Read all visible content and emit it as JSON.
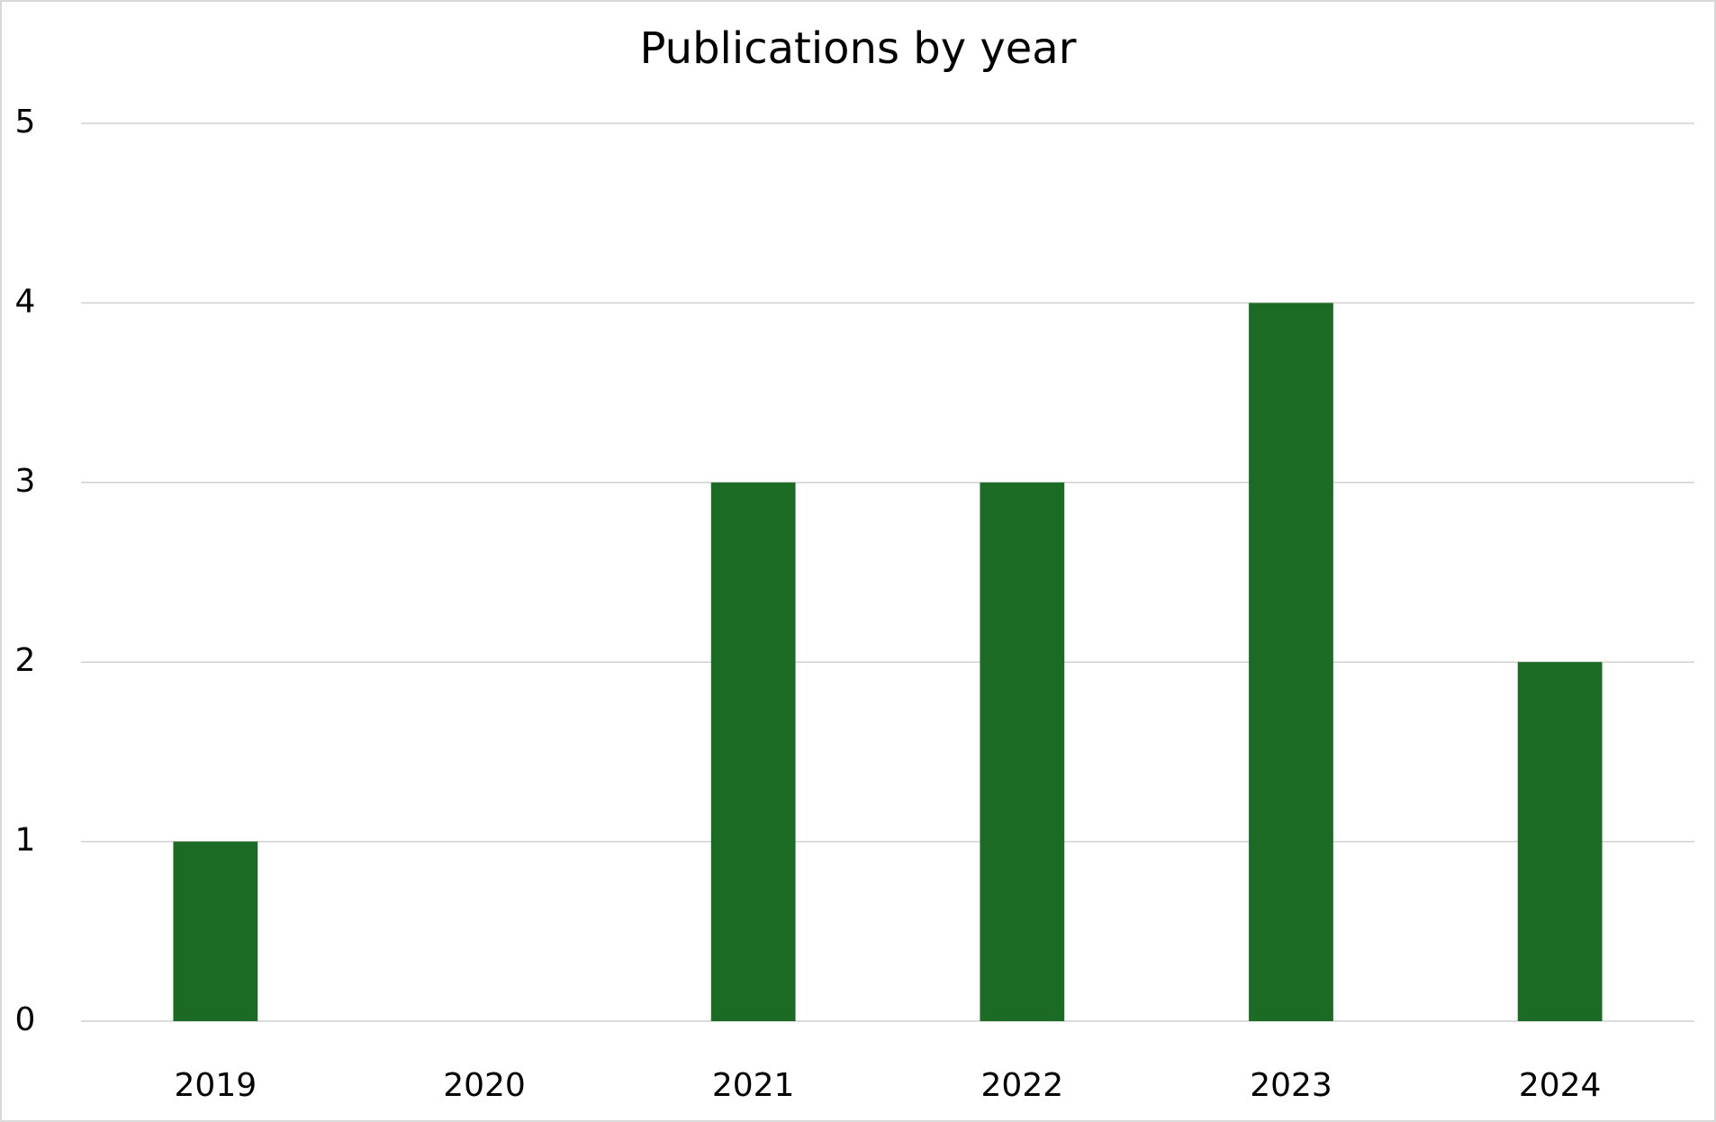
{
  "chart_data": {
    "type": "bar",
    "title": "Publications by year",
    "categories": [
      "2019",
      "2020",
      "2021",
      "2022",
      "2023",
      "2024"
    ],
    "values": [
      1,
      0,
      3,
      3,
      4,
      2
    ],
    "color": "#1b6b25",
    "ylim": [
      0,
      5
    ],
    "yticks": [
      0,
      1,
      2,
      3,
      4,
      5
    ],
    "grid": true
  }
}
